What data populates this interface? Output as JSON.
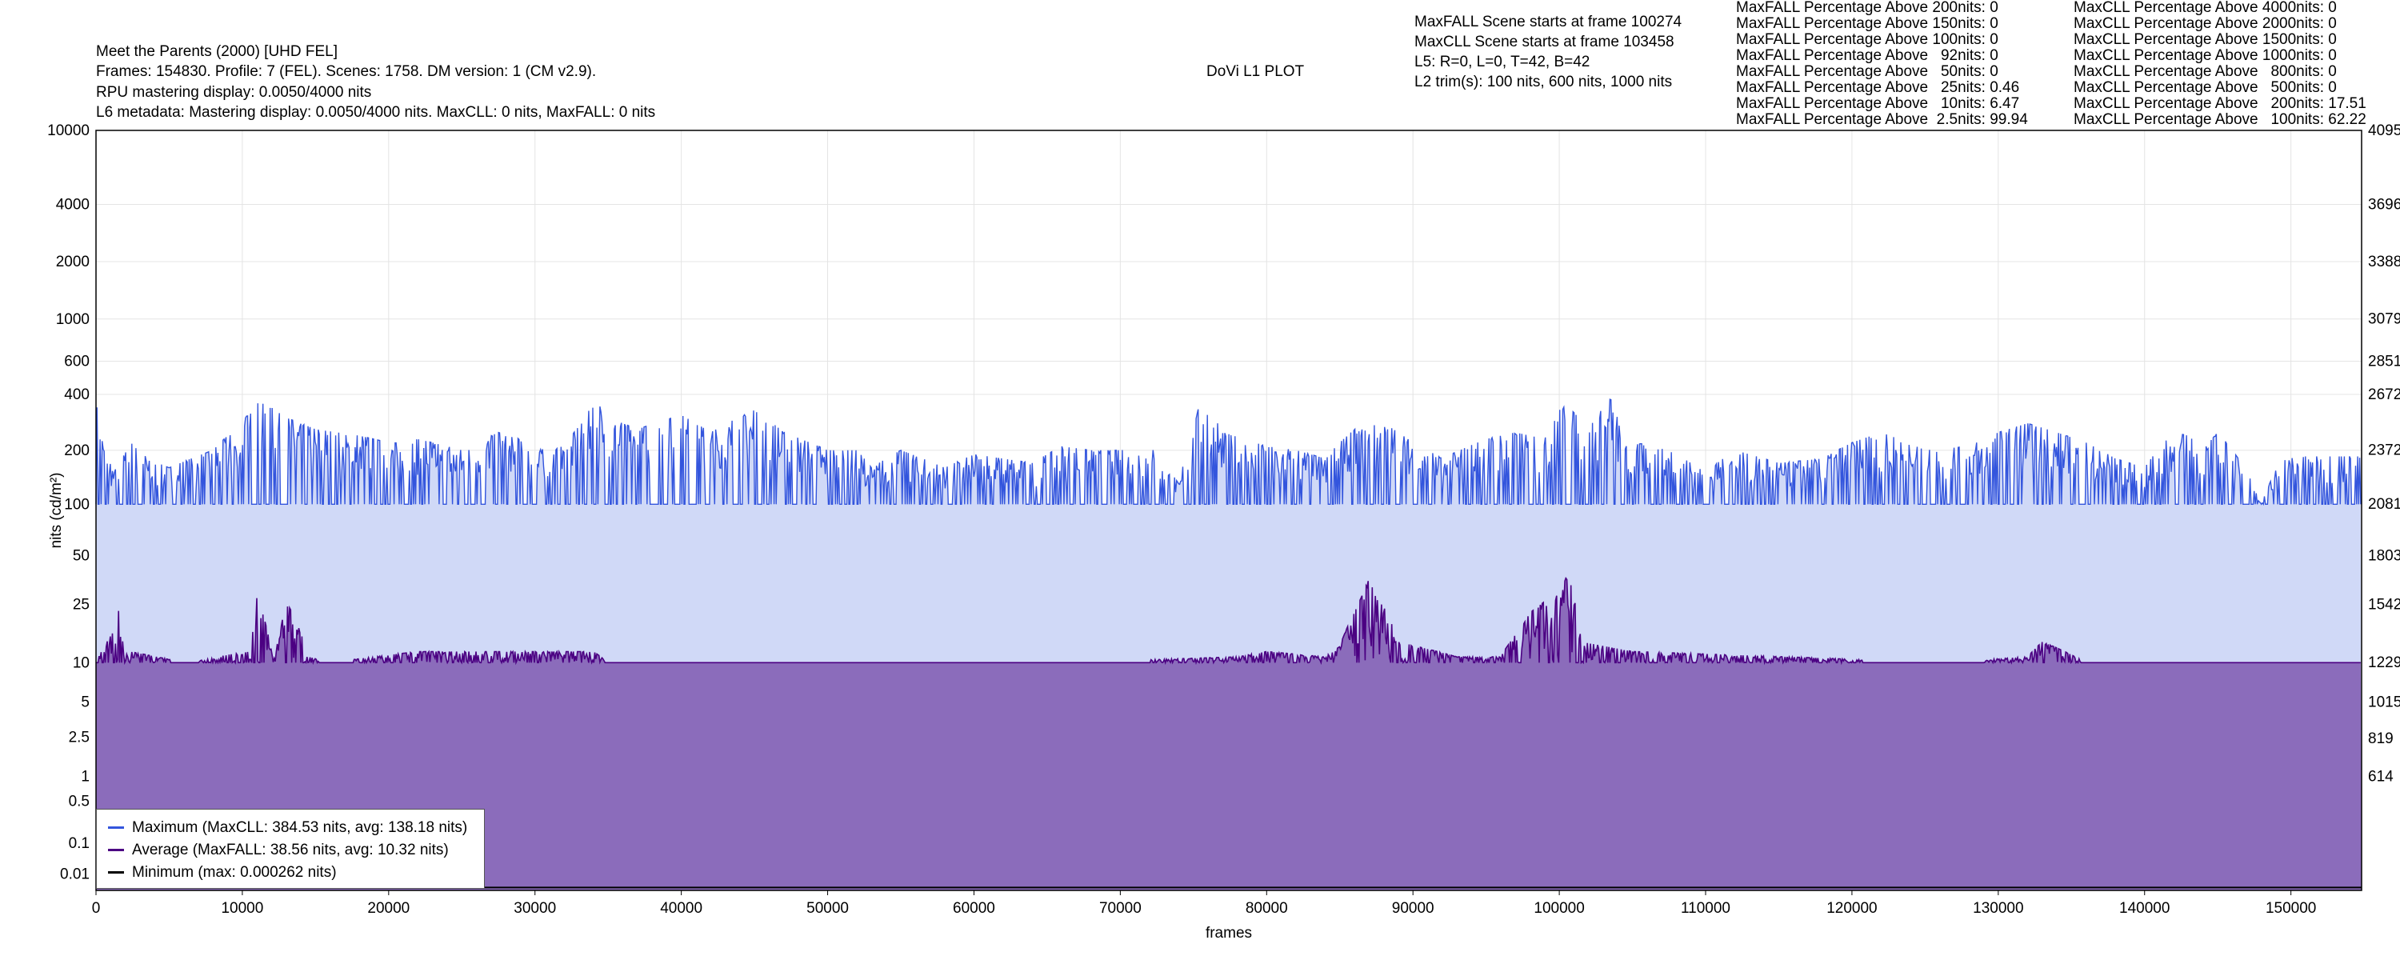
{
  "header": {
    "title": "Meet the Parents (2000) [UHD FEL]",
    "info_line": "Frames: 154830. Profile: 7 (FEL). Scenes: 1758. DM version: 1 (CM v2.9).",
    "rpu_line": "RPU mastering display: 0.0050/4000 nits",
    "l6_line": "L6 metadata: Mastering display: 0.0050/4000 nits. MaxCLL: 0 nits, MaxFALL: 0 nits",
    "plot_title": "DoVi L1 PLOT",
    "maxfall_scene": "MaxFALL Scene starts at frame 100274",
    "maxcll_scene": "MaxCLL Scene starts at frame 103458",
    "l5": "L5: R=0, L=0, T=42, B=42",
    "l2": "L2 trim(s): 100 nits, 600 nits, 1000 nits"
  },
  "stats": {
    "maxfall": [
      "MaxFALL Percentage Above 200nits: 0",
      "MaxFALL Percentage Above 150nits: 0",
      "MaxFALL Percentage Above 100nits: 0",
      "MaxFALL Percentage Above   92nits: 0",
      "MaxFALL Percentage Above   50nits: 0",
      "MaxFALL Percentage Above   25nits: 0.46",
      "MaxFALL Percentage Above   10nits: 6.47",
      "MaxFALL Percentage Above  2.5nits: 99.94"
    ],
    "maxcll": [
      "MaxCLL Percentage Above 4000nits: 0",
      "MaxCLL Percentage Above 2000nits: 0",
      "MaxCLL Percentage Above 1500nits: 0",
      "MaxCLL Percentage Above 1000nits: 0",
      "MaxCLL Percentage Above   800nits: 0",
      "MaxCLL Percentage Above   500nits: 0",
      "MaxCLL Percentage Above   200nits: 17.51",
      "MaxCLL Percentage Above   100nits: 62.22"
    ]
  },
  "legend": {
    "maximum": "Maximum (MaxCLL: 384.53 nits, avg: 138.18 nits)",
    "average": "Average (MaxFALL: 38.56 nits, avg: 10.32 nits)",
    "minimum": "Minimum (max: 0.000262 nits)"
  },
  "colors": {
    "maximum_line": "#3355dd",
    "maximum_fill": "#d0d9f7",
    "average_line": "#4b0082",
    "average_fill": "#8b6cbb",
    "minimum_line": "#000000"
  },
  "chart_data": {
    "type": "area",
    "xlabel": "frames",
    "ylabel": "nits (cd/m²)",
    "xlim": [
      0,
      154830
    ],
    "x_ticks": [
      0,
      10000,
      20000,
      30000,
      40000,
      50000,
      60000,
      70000,
      80000,
      90000,
      100000,
      110000,
      120000,
      130000,
      140000,
      150000
    ],
    "y_scale": "pq",
    "ylim": [
      0.0001,
      10000
    ],
    "y_ticks": [
      "10000",
      "4000",
      "2000",
      "1000",
      "600",
      "400",
      "200",
      "100",
      "50",
      "25",
      "10",
      "5",
      "2.5",
      "1",
      "0.5",
      "0.1",
      "0.01"
    ],
    "y_ticks_right": [
      "4095",
      "3696",
      "3388",
      "3079",
      "2851",
      "2672",
      "2372",
      "2081",
      "1803",
      "1542",
      "1229",
      "1015",
      "819",
      "614"
    ],
    "grid": true,
    "legend_position": "bottom-left",
    "series": [
      {
        "name": "Maximum (MaxCLL: 384.53 nits, avg: 138.18 nits)",
        "baseline": 100,
        "x": [
          0,
          600,
          1200,
          2500,
          3500,
          5000,
          8000,
          10000,
          11000,
          12000,
          13000,
          15000,
          18000,
          20000,
          22000,
          25000,
          27500,
          29000,
          30000,
          32000,
          33500,
          34000,
          35000,
          37000,
          40000,
          42000,
          45000,
          47000,
          50000,
          52000,
          53000,
          55000,
          58000,
          60000,
          62000,
          64000,
          66000,
          68000,
          70000,
          72000,
          74000,
          75000,
          75500,
          77000,
          80000,
          82000,
          84000,
          86000,
          88000,
          90000,
          92000,
          95000,
          97000,
          99000,
          100000,
          100500,
          102000,
          103500,
          104500,
          106000,
          108000,
          110000,
          112000,
          115000,
          118000,
          120000,
          122000,
          125000,
          128000,
          130000,
          132000,
          134000,
          136000,
          138000,
          140000,
          142000,
          143000,
          144000,
          145000,
          148000,
          149500,
          154830
        ],
        "values": [
          360,
          200,
          150,
          220,
          180,
          160,
          200,
          280,
          370,
          340,
          300,
          260,
          240,
          220,
          230,
          200,
          250,
          230,
          200,
          210,
          300,
          380,
          300,
          260,
          310,
          250,
          330,
          250,
          200,
          200,
          160,
          200,
          160,
          190,
          180,
          170,
          210,
          200,
          200,
          210,
          130,
          250,
          380,
          250,
          210,
          200,
          180,
          260,
          280,
          220,
          180,
          230,
          250,
          230,
          330,
          350,
          260,
          380,
          210,
          220,
          190,
          150,
          200,
          170,
          180,
          220,
          250,
          200,
          210,
          250,
          280,
          250,
          220,
          180,
          160,
          250,
          240,
          200,
          250,
          100,
          185,
          185
        ]
      },
      {
        "name": "Average (MaxFALL: 38.56 nits, avg: 10.32 nits)",
        "baseline": 10,
        "x": [
          0,
          1300,
          1600,
          1900,
          2300,
          6000,
          8000,
          10600,
          11000,
          12000,
          12500,
          13000,
          14500,
          16000,
          22000,
          34000,
          35000,
          50000,
          66000,
          78000,
          80000,
          84000,
          85000,
          86000,
          86500,
          87000,
          87500,
          88000,
          89000,
          93000,
          96000,
          97500,
          98000,
          99000,
          99500,
          100000,
          100300,
          100800,
          101500,
          105000,
          126000,
          132000,
          133000,
          133800,
          136000,
          154830
        ],
        "values": [
          10,
          17,
          24,
          11,
          12,
          10,
          11,
          12,
          28,
          12,
          14,
          26,
          11,
          10,
          12,
          12,
          10,
          10,
          10,
          11,
          12,
          11,
          13,
          22,
          28,
          36,
          27,
          24,
          14,
          11,
          11,
          18,
          22,
          26,
          20,
          33,
          38,
          33,
          14,
          12,
          10,
          11,
          14,
          13,
          10,
          10
        ]
      },
      {
        "name": "Minimum (max: 0.000262 nits)",
        "x": [
          0,
          154830
        ],
        "values": [
          0.0001,
          0.0001
        ]
      }
    ]
  }
}
